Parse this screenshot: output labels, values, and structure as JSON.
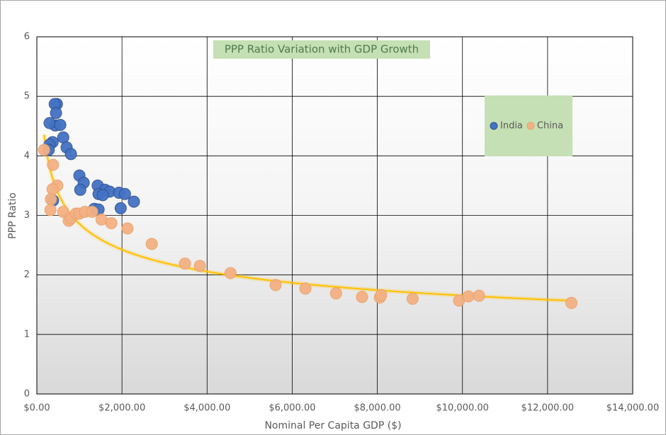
{
  "chart_data": {
    "type": "scatter",
    "title": "PPP Ratio Variation with GDP Growth",
    "x_label": "Nominal Per Capita GDP ($)",
    "y_label": "PPP Ratio",
    "xlim": [
      0,
      14000
    ],
    "xticks": [
      {
        "value": 0,
        "label": "$0.00"
      },
      {
        "value": 2000,
        "label": "$2,000.00"
      },
      {
        "value": 4000,
        "label": "$4,000.00"
      },
      {
        "value": 6000,
        "label": "$6,000.00"
      },
      {
        "value": 8000,
        "label": "$8,000.00"
      },
      {
        "value": 10000,
        "label": "$10,000.00"
      },
      {
        "value": 12000,
        "label": "$12,000.00"
      },
      {
        "value": 14000,
        "label": "$14,000.00"
      }
    ],
    "ylim": [
      0,
      6
    ],
    "yticks": [
      0,
      1,
      2,
      3,
      4,
      5,
      6
    ],
    "grid": true,
    "legend": "upper-right",
    "series": [
      {
        "name": "India",
        "color": "#4472c4",
        "x": [
          470,
          420,
          450,
          430,
          300,
          550,
          620,
          700,
          800,
          370,
          300,
          280,
          1000,
          1100,
          1020,
          1430,
          1600,
          1710,
          1930,
          2070,
          1450,
          1550,
          2280,
          1970,
          1350,
          1450,
          380
        ],
        "values": [
          4.87,
          4.87,
          4.72,
          4.51,
          4.55,
          4.52,
          4.31,
          4.14,
          4.03,
          4.23,
          4.19,
          4.1,
          3.67,
          3.55,
          3.43,
          3.5,
          3.43,
          3.4,
          3.38,
          3.36,
          3.36,
          3.34,
          3.23,
          3.12,
          3.11,
          3.1,
          3.25
        ]
      },
      {
        "name": "China",
        "color": "#f4b183",
        "x": [
          170,
          380,
          480,
          370,
          330,
          320,
          620,
          750,
          800,
          920,
          1000,
          1130,
          1300,
          1520,
          1750,
          2130,
          2700,
          3480,
          3830,
          4550,
          5610,
          6310,
          7030,
          7640,
          8060,
          8090,
          8830,
          9920,
          10140,
          10390,
          12560
        ],
        "values": [
          4.1,
          3.85,
          3.5,
          3.44,
          3.27,
          3.09,
          3.06,
          2.91,
          2.95,
          3.03,
          3.03,
          3.06,
          3.06,
          2.93,
          2.87,
          2.78,
          2.52,
          2.19,
          2.15,
          2.03,
          1.83,
          1.77,
          1.69,
          1.63,
          1.62,
          1.66,
          1.6,
          1.57,
          1.64,
          1.65,
          1.53
        ]
      }
    ],
    "trendline": {
      "series_index": 1,
      "type": "power",
      "color": "#ffc000"
    }
  }
}
